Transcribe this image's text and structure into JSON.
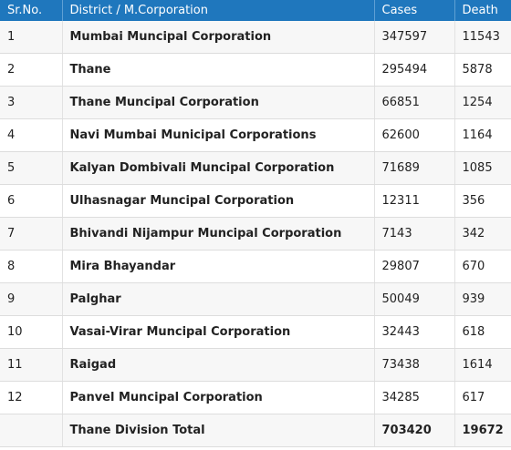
{
  "table": {
    "headers": {
      "sr": "Sr.No.",
      "district": "District / M.Corporation",
      "cases": "Cases",
      "death": "Death"
    },
    "rows": [
      {
        "sr": "1",
        "district": "Mumbai Muncipal Corporation",
        "cases": "347597",
        "death": "11543"
      },
      {
        "sr": "2",
        "district": "Thane",
        "cases": "295494",
        "death": "5878"
      },
      {
        "sr": "3",
        "district": "Thane Muncipal Corporation",
        "cases": "66851",
        "death": "1254"
      },
      {
        "sr": "4",
        "district": "Navi Mumbai Municipal Corporations",
        "cases": "62600",
        "death": "1164"
      },
      {
        "sr": "5",
        "district": "Kalyan Dombivali Muncipal Corporation",
        "cases": "71689",
        "death": "1085"
      },
      {
        "sr": "6",
        "district": "Ulhasnagar Muncipal Corporation",
        "cases": "12311",
        "death": "356"
      },
      {
        "sr": "7",
        "district": "Bhivandi Nijampur Muncipal Corporation",
        "cases": "7143",
        "death": "342"
      },
      {
        "sr": "8",
        "district": "Mira Bhayandar",
        "cases": "29807",
        "death": "670"
      },
      {
        "sr": "9",
        "district": "Palghar",
        "cases": "50049",
        "death": "939"
      },
      {
        "sr": "10",
        "district": "Vasai-Virar Muncipal Corporation",
        "cases": "32443",
        "death": "618"
      },
      {
        "sr": "11",
        "district": "Raigad",
        "cases": "73438",
        "death": "1614"
      },
      {
        "sr": "12",
        "district": "Panvel Muncipal Corporation",
        "cases": "34285",
        "death": "617"
      }
    ],
    "total": {
      "label": "Thane Division Total",
      "cases": "703420",
      "death": "19672"
    }
  },
  "colors": {
    "header_bg": "#1f77bd",
    "header_text": "#ffffff"
  }
}
